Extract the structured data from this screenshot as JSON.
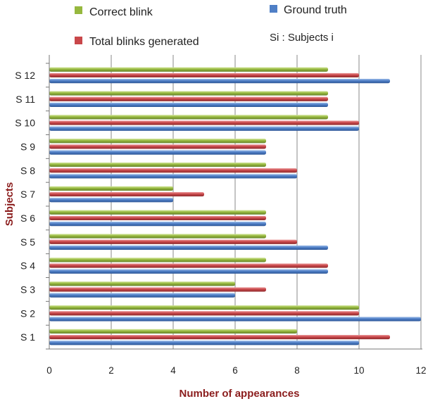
{
  "chart_data": {
    "type": "bar",
    "orientation": "horizontal",
    "categories": [
      "S 1",
      "S 2",
      "S 3",
      "S 4",
      "S 5",
      "S 6",
      "S 7",
      "S 8",
      "S 9",
      "S 10",
      "S 11",
      "S 12"
    ],
    "series": [
      {
        "name": "Ground truth",
        "color": "#4f7fc6",
        "values": [
          10,
          12,
          6,
          9,
          9,
          7,
          4,
          8,
          7,
          10,
          9,
          11
        ]
      },
      {
        "name": "Total blinks generated",
        "color": "#c9474a",
        "values": [
          11,
          10,
          7,
          9,
          8,
          7,
          5,
          8,
          7,
          10,
          9,
          10
        ]
      },
      {
        "name": "Correct blink",
        "color": "#96b83e",
        "values": [
          8,
          10,
          6,
          7,
          7,
          7,
          4,
          7,
          7,
          9,
          9,
          9
        ]
      }
    ],
    "xlabel": "Number of appearances",
    "ylabel": "Subjects",
    "xlim": [
      0,
      12
    ],
    "xticks": [
      "0",
      "2",
      "4",
      "6",
      "8",
      "10",
      "12"
    ],
    "grid": "vertical",
    "note": "Si : Subjects i"
  }
}
